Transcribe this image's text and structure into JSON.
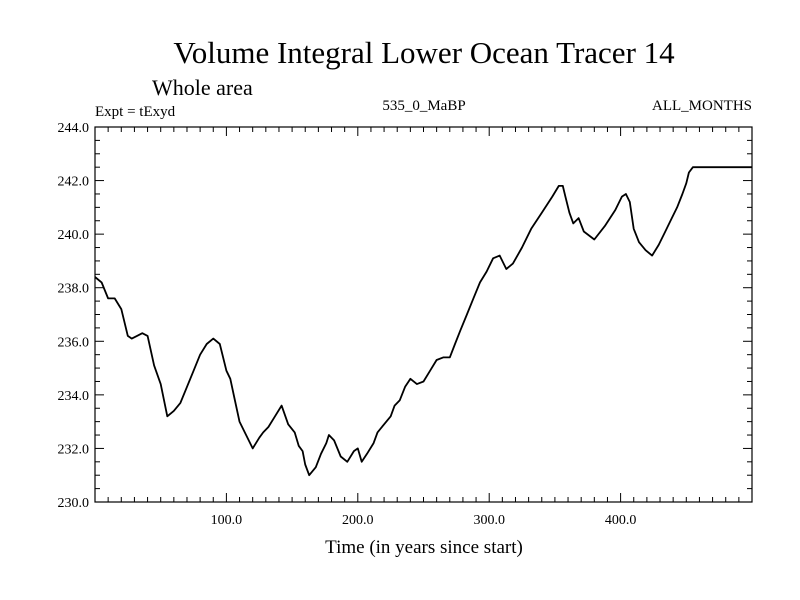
{
  "title": "Volume Integral Lower Ocean Tracer 14",
  "subtitle": "Whole area",
  "info": {
    "experiment": "Expt = tExyd",
    "period": "535_0_MaBP",
    "months": "ALL_MONTHS"
  },
  "colors": {
    "line": "#000000",
    "background": "#ffffff"
  },
  "chart_data": {
    "type": "line",
    "title": "Volume Integral Lower Ocean Tracer 14",
    "xlabel": "Time (in years since start)",
    "ylabel": "",
    "xlim": [
      0,
      500
    ],
    "ylim": [
      230,
      244
    ],
    "x_ticks": [
      100,
      200,
      300,
      400
    ],
    "x_tick_labels": [
      "100.0",
      "200.0",
      "300.0",
      "400.0"
    ],
    "y_ticks": [
      230,
      232,
      234,
      236,
      238,
      240,
      242,
      244
    ],
    "y_tick_labels": [
      "230.0",
      "232.0",
      "234.0",
      "236.0",
      "238.0",
      "240.0",
      "242.0",
      "244.0"
    ],
    "grid": false,
    "series": [
      {
        "x": [
          0,
          5,
          10,
          15,
          20,
          25,
          28,
          32,
          36,
          40,
          45,
          50,
          55,
          60,
          65,
          70,
          75,
          80,
          85,
          90,
          95,
          100,
          103,
          106,
          110,
          115,
          120,
          125,
          128,
          132,
          137,
          142,
          147,
          152,
          155,
          158,
          160,
          163,
          168,
          172,
          176,
          178,
          182,
          187,
          192,
          197,
          200,
          203,
          207,
          212,
          215,
          220,
          225,
          228,
          232,
          236,
          240,
          245,
          250,
          255,
          260,
          265,
          270,
          274,
          278,
          283,
          288,
          293,
          298,
          303,
          308,
          313,
          318,
          325,
          332,
          340,
          348,
          353,
          356,
          358,
          361,
          364,
          368,
          372,
          380,
          388,
          396,
          401,
          404,
          407,
          410,
          414,
          419,
          424,
          429,
          434,
          439,
          443,
          447,
          450,
          452,
          455,
          458,
          462,
          466,
          470,
          475,
          480,
          485,
          490,
          495,
          500
        ],
        "values": [
          238.4,
          238.2,
          237.6,
          237.6,
          237.2,
          236.2,
          236.1,
          236.2,
          236.3,
          236.2,
          235.1,
          234.4,
          233.2,
          233.4,
          233.7,
          234.3,
          234.9,
          235.5,
          235.9,
          236.1,
          235.9,
          234.9,
          234.6,
          233.9,
          233.0,
          232.5,
          232.0,
          232.4,
          232.6,
          232.8,
          233.2,
          233.6,
          232.9,
          232.6,
          232.1,
          231.9,
          231.4,
          231.0,
          231.3,
          231.8,
          232.2,
          232.5,
          232.3,
          231.7,
          231.5,
          231.9,
          232.0,
          231.5,
          231.8,
          232.2,
          232.6,
          232.9,
          233.2,
          233.6,
          233.8,
          234.3,
          234.6,
          234.4,
          234.5,
          234.9,
          235.3,
          235.4,
          235.4,
          235.9,
          236.4,
          237.0,
          237.6,
          238.2,
          238.6,
          239.1,
          239.2,
          238.7,
          238.9,
          239.5,
          240.2,
          240.8,
          241.4,
          241.8,
          241.8,
          241.4,
          240.8,
          240.4,
          240.6,
          240.1,
          239.8,
          240.3,
          240.9,
          241.4,
          241.5,
          241.2,
          240.2,
          239.7,
          239.4,
          239.2,
          239.6,
          240.1,
          240.6,
          241.0,
          241.5,
          241.9,
          242.3,
          242.5,
          242.5,
          242.5,
          242.5,
          242.5,
          242.5,
          242.5,
          242.5,
          242.5,
          242.5,
          242.5
        ]
      }
    ]
  }
}
